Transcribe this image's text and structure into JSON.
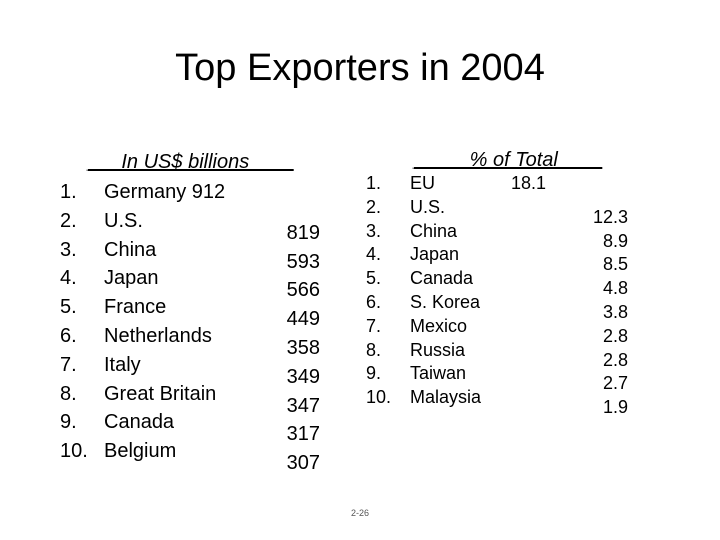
{
  "title": "Top Exporters in 2004",
  "left_table": {
    "header": "___In US$ billions____",
    "rows": [
      {
        "rank": "1.",
        "country": "Germany 912",
        "value": ""
      },
      {
        "rank": "2.",
        "country": "U.S.",
        "value": "819"
      },
      {
        "rank": "3.",
        "country": "China",
        "value": "593"
      },
      {
        "rank": "4.",
        "country": "Japan",
        "value": "566"
      },
      {
        "rank": "5.",
        "country": "France",
        "value": "449"
      },
      {
        "rank": "6.",
        "country": "Netherlands",
        "value": "358"
      },
      {
        "rank": "7.",
        "country": "Italy",
        "value": "349"
      },
      {
        "rank": "8.",
        "country": "Great Britain",
        "value": "347"
      },
      {
        "rank": "9.",
        "country": "Canada",
        "value": "317"
      },
      {
        "rank": "10.",
        "country": "Belgium",
        "value": "307"
      }
    ]
  },
  "right_table": {
    "header": "_____% of Total____",
    "rows": [
      {
        "rank": "1.",
        "country": "EU",
        "value": "18.1"
      },
      {
        "rank": "2.",
        "country": "U.S.",
        "value": "12.3"
      },
      {
        "rank": "3.",
        "country": "China",
        "value": "8.9"
      },
      {
        "rank": "4.",
        "country": "Japan",
        "value": "8.5"
      },
      {
        "rank": "5.",
        "country": "Canada",
        "value": "4.8"
      },
      {
        "rank": "6.",
        "country": "S. Korea",
        "value": "3.8"
      },
      {
        "rank": "7.",
        "country": "Mexico",
        "value": "2.8"
      },
      {
        "rank": "8.",
        "country": "Russia",
        "value": "2.8"
      },
      {
        "rank": "9.",
        "country": "Taiwan",
        "value": "2.7"
      },
      {
        "rank": "10.",
        "country": "Malaysia",
        "value": "1.9"
      }
    ]
  },
  "slide_number": "2-26"
}
